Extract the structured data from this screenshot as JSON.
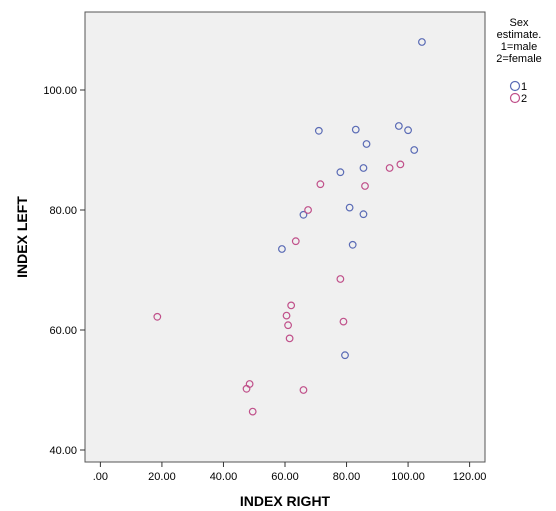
{
  "chart_data": {
    "type": "scatter",
    "xlabel": "INDEX RIGHT",
    "ylabel": "INDEX LEFT",
    "xlim": [
      -5,
      125
    ],
    "ylim": [
      38,
      113
    ],
    "x_ticks": [
      0,
      20,
      40,
      60,
      80,
      100,
      120
    ],
    "x_tick_labels": [
      ".00",
      "20.00",
      "40.00",
      "60.00",
      "80.00",
      "100.00",
      "120.00"
    ],
    "y_ticks": [
      40,
      60,
      80,
      100
    ],
    "y_tick_labels": [
      "40.00",
      "60.00",
      "80.00",
      "100.00"
    ],
    "grid": false,
    "legend": {
      "title_lines": [
        "Sex",
        "estimate.",
        "1=male",
        "2=female"
      ],
      "placement": "right"
    },
    "series": [
      {
        "name": "1",
        "color": "#5a6bb5",
        "points": [
          [
            104.5,
            108
          ],
          [
            97,
            94
          ],
          [
            100,
            93.3
          ],
          [
            83,
            93.4
          ],
          [
            71,
            93.2
          ],
          [
            86.5,
            91
          ],
          [
            102,
            90
          ],
          [
            85.5,
            87
          ],
          [
            78,
            86.3
          ],
          [
            81,
            80.4
          ],
          [
            66,
            79.2
          ],
          [
            85.5,
            79.3
          ],
          [
            59,
            73.5
          ],
          [
            82,
            74.2
          ],
          [
            79.5,
            55.8
          ]
        ]
      },
      {
        "name": "2",
        "color": "#c0508a",
        "points": [
          [
            97.5,
            87.6
          ],
          [
            94,
            87
          ],
          [
            71.5,
            84.3
          ],
          [
            86,
            84
          ],
          [
            67.5,
            80
          ],
          [
            63.5,
            74.8
          ],
          [
            78,
            68.5
          ],
          [
            62,
            64.1
          ],
          [
            60.5,
            62.4
          ],
          [
            18.5,
            62.2
          ],
          [
            61,
            60.8
          ],
          [
            79,
            61.4
          ],
          [
            61.5,
            58.6
          ],
          [
            48.5,
            51
          ],
          [
            47.5,
            50.2
          ],
          [
            66,
            50
          ],
          [
            49.5,
            46.4
          ]
        ]
      }
    ]
  }
}
